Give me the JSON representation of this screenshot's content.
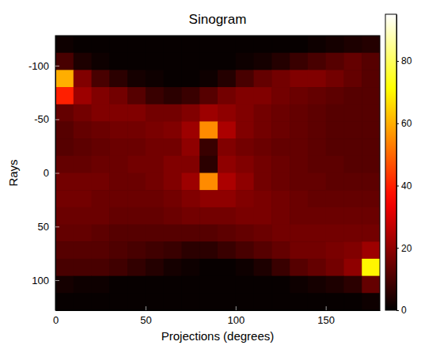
{
  "chart_data": {
    "type": "heatmap",
    "title": "Sinogram",
    "x_label": "Projections (degrees)",
    "y_label": "Rays",
    "xlim": [
      0,
      180
    ],
    "xticks": [
      0,
      50,
      100,
      150
    ],
    "ylim": [
      128,
      -128
    ],
    "yticks": [
      -100,
      -50,
      0,
      50,
      100
    ],
    "x": [
      5,
      15,
      25,
      35,
      45,
      55,
      65,
      75,
      85,
      95,
      105,
      115,
      125,
      135,
      145,
      155,
      165,
      175
    ],
    "y": [
      -120,
      -104,
      -88,
      -72,
      -56,
      -40,
      -24,
      -8,
      8,
      24,
      40,
      56,
      72,
      88,
      104,
      120
    ],
    "values": [
      [
        2,
        1,
        1,
        1,
        1,
        1,
        1,
        1,
        1,
        1,
        1,
        1,
        1,
        1,
        2,
        3,
        4,
        5
      ],
      [
        10,
        4,
        2,
        1,
        1,
        1,
        1,
        1,
        1,
        1,
        2,
        3,
        5,
        8,
        10,
        12,
        14,
        12
      ],
      [
        60,
        18,
        10,
        6,
        3,
        2,
        1,
        1,
        2,
        5,
        10,
        14,
        16,
        18,
        18,
        16,
        14,
        12
      ],
      [
        40,
        22,
        18,
        16,
        12,
        8,
        6,
        8,
        12,
        16,
        18,
        18,
        16,
        15,
        14,
        13,
        12,
        12
      ],
      [
        14,
        16,
        18,
        18,
        18,
        16,
        16,
        18,
        22,
        20,
        18,
        16,
        15,
        14,
        13,
        12,
        12,
        12
      ],
      [
        12,
        14,
        15,
        16,
        16,
        17,
        18,
        22,
        55,
        24,
        18,
        16,
        15,
        14,
        13,
        12,
        12,
        12
      ],
      [
        12,
        13,
        14,
        15,
        15,
        16,
        16,
        20,
        8,
        18,
        16,
        15,
        14,
        14,
        13,
        12,
        12,
        12
      ],
      [
        14,
        14,
        15,
        15,
        16,
        16,
        18,
        18,
        6,
        20,
        18,
        16,
        15,
        14,
        13,
        13,
        12,
        12
      ],
      [
        16,
        16,
        16,
        15,
        15,
        16,
        18,
        22,
        55,
        24,
        20,
        16,
        15,
        14,
        14,
        13,
        13,
        13
      ],
      [
        16,
        16,
        15,
        15,
        15,
        15,
        16,
        18,
        20,
        20,
        18,
        17,
        16,
        15,
        14,
        14,
        14,
        14
      ],
      [
        15,
        15,
        15,
        14,
        14,
        14,
        15,
        16,
        16,
        16,
        17,
        17,
        16,
        15,
        15,
        15,
        15,
        15
      ],
      [
        14,
        14,
        13,
        12,
        12,
        12,
        12,
        12,
        12,
        13,
        14,
        15,
        16,
        16,
        16,
        16,
        16,
        16
      ],
      [
        12,
        12,
        12,
        11,
        10,
        9,
        8,
        6,
        6,
        8,
        10,
        12,
        14,
        16,
        16,
        17,
        18,
        22
      ],
      [
        10,
        10,
        10,
        9,
        7,
        5,
        3,
        2,
        1,
        1,
        2,
        4,
        8,
        12,
        14,
        16,
        20,
        70
      ],
      [
        3,
        2,
        2,
        1,
        1,
        1,
        1,
        1,
        1,
        1,
        1,
        1,
        1,
        2,
        3,
        4,
        6,
        14
      ],
      [
        1,
        1,
        1,
        1,
        1,
        1,
        1,
        1,
        1,
        1,
        1,
        1,
        1,
        1,
        1,
        1,
        1,
        2
      ]
    ],
    "colorbar": {
      "range": [
        0,
        95
      ],
      "ticks": [
        0,
        20,
        40,
        60,
        80
      ]
    }
  }
}
